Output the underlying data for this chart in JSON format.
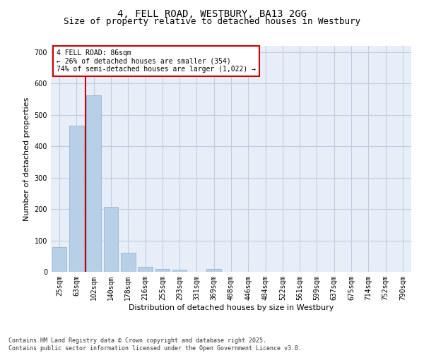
{
  "title_line1": "4, FELL ROAD, WESTBURY, BA13 2GG",
  "title_line2": "Size of property relative to detached houses in Westbury",
  "xlabel": "Distribution of detached houses by size in Westbury",
  "ylabel": "Number of detached properties",
  "categories": [
    "25sqm",
    "63sqm",
    "102sqm",
    "140sqm",
    "178sqm",
    "216sqm",
    "255sqm",
    "293sqm",
    "331sqm",
    "369sqm",
    "408sqm",
    "446sqm",
    "484sqm",
    "522sqm",
    "561sqm",
    "599sqm",
    "637sqm",
    "675sqm",
    "714sqm",
    "752sqm",
    "790sqm"
  ],
  "values": [
    78,
    465,
    562,
    207,
    60,
    15,
    10,
    7,
    0,
    8,
    0,
    0,
    0,
    0,
    0,
    0,
    0,
    0,
    0,
    0,
    0
  ],
  "bar_color": "#b8cfe8",
  "bar_edge_color": "#8ab0d0",
  "background_color": "#e8eef8",
  "grid_color": "#c0cce0",
  "vline_x": 1.5,
  "vline_color": "#cc0000",
  "annotation_text": "4 FELL ROAD: 86sqm\n← 26% of detached houses are smaller (354)\n74% of semi-detached houses are larger (1,022) →",
  "annotation_box_color": "#cc0000",
  "ylim": [
    0,
    720
  ],
  "yticks": [
    0,
    100,
    200,
    300,
    400,
    500,
    600,
    700
  ],
  "footnote": "Contains HM Land Registry data © Crown copyright and database right 2025.\nContains public sector information licensed under the Open Government Licence v3.0.",
  "title_fontsize": 10,
  "subtitle_fontsize": 9,
  "axis_label_fontsize": 8,
  "tick_fontsize": 7,
  "annotation_fontsize": 7,
  "footnote_fontsize": 6
}
